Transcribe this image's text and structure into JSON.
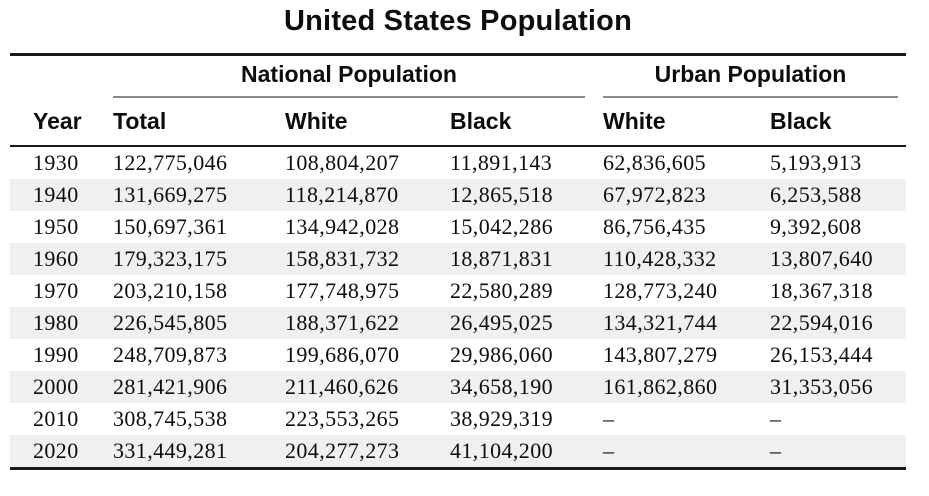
{
  "title": "United States Population",
  "colors": {
    "stripe": "#f0f0f0",
    "rule_dark": "#1a1a1a",
    "rule_gray": "#8a8a8a"
  },
  "table": {
    "group_headers": [
      {
        "label": "National Population",
        "span": 3
      },
      {
        "label": "Urban Population",
        "span": 2
      }
    ],
    "column_headers": [
      "Year",
      "Total",
      "White",
      "Black",
      "White",
      "Black"
    ],
    "missing_value_symbol": "–",
    "rows": [
      {
        "cells": [
          "1930",
          "122,775,046",
          "108,804,207",
          "11,891,143",
          "62,836,605",
          "5,193,913"
        ]
      },
      {
        "cells": [
          "1940",
          "131,669,275",
          "118,214,870",
          "12,865,518",
          "67,972,823",
          "6,253,588"
        ]
      },
      {
        "cells": [
          "1950",
          "150,697,361",
          "134,942,028",
          "15,042,286",
          "86,756,435",
          "9,392,608"
        ]
      },
      {
        "cells": [
          "1960",
          "179,323,175",
          "158,831,732",
          "18,871,831",
          "110,428,332",
          "13,807,640"
        ]
      },
      {
        "cells": [
          "1970",
          "203,210,158",
          "177,748,975",
          "22,580,289",
          "128,773,240",
          "18,367,318"
        ]
      },
      {
        "cells": [
          "1980",
          "226,545,805",
          "188,371,622",
          "26,495,025",
          "134,321,744",
          "22,594,016"
        ]
      },
      {
        "cells": [
          "1990",
          "248,709,873",
          "199,686,070",
          "29,986,060",
          "143,807,279",
          "26,153,444"
        ]
      },
      {
        "cells": [
          "2000",
          "281,421,906",
          "211,460,626",
          "34,658,190",
          "161,862,860",
          "31,353,056"
        ]
      },
      {
        "cells": [
          "2010",
          "308,745,538",
          "223,553,265",
          "38,929,319",
          "–",
          "–"
        ]
      },
      {
        "cells": [
          "2020",
          "331,449,281",
          "204,277,273",
          "41,104,200",
          "–",
          "–"
        ]
      }
    ]
  }
}
